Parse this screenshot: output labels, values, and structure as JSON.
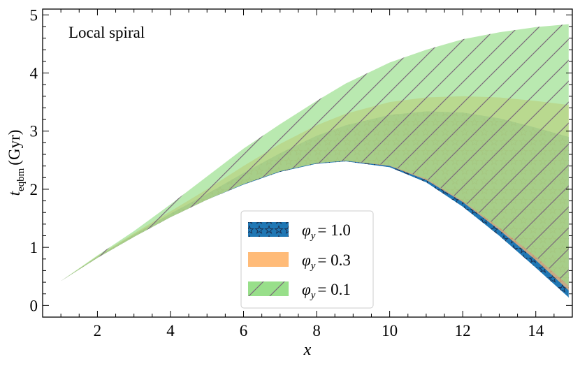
{
  "chart_data": {
    "type": "area",
    "annotation": "Local spiral",
    "xlabel": "x",
    "ylabel_main": "t",
    "ylabel_sub": "eqbm",
    "ylabel_unit": "(Gyr)",
    "xlim": [
      0.5,
      15
    ],
    "ylim": [
      -0.2,
      5.1
    ],
    "xticks": [
      2,
      4,
      6,
      8,
      10,
      12,
      14
    ],
    "yticks": [
      0,
      1,
      2,
      3,
      4,
      5
    ],
    "legend_position": "lower-center",
    "colors": {
      "phi_1_0": "#1f77b4",
      "phi_0_3": "#ffbb78",
      "phi_0_1": "#98df8a",
      "hatch_star": "#1a2a4a",
      "hatch_diag": "#7a6a7a"
    },
    "x": [
      1.0,
      2.0,
      3.0,
      4.0,
      5.0,
      6.0,
      7.0,
      8.0,
      8.8,
      10.0,
      11.0,
      12.0,
      13.0,
      14.0,
      14.9
    ],
    "series": [
      {
        "name": "phi_y = 1.0",
        "legend_label": "= 1.0",
        "hatch": "stars",
        "lower": [
          0.42,
          0.82,
          1.18,
          1.52,
          1.82,
          2.08,
          2.3,
          2.44,
          2.48,
          2.38,
          2.12,
          1.7,
          1.2,
          0.65,
          0.14
        ],
        "upper": [
          0.42,
          0.84,
          1.22,
          1.58,
          1.92,
          2.28,
          2.62,
          2.92,
          3.1,
          3.28,
          3.34,
          3.32,
          3.22,
          3.06,
          2.9
        ]
      },
      {
        "name": "phi_y = 0.3",
        "legend_label": "= 0.3",
        "hatch": "none",
        "lower": [
          0.42,
          0.82,
          1.18,
          1.52,
          1.82,
          2.09,
          2.31,
          2.45,
          2.49,
          2.4,
          2.16,
          1.78,
          1.3,
          0.78,
          0.26
        ],
        "upper": [
          0.42,
          0.85,
          1.24,
          1.62,
          2.0,
          2.4,
          2.78,
          3.1,
          3.3,
          3.5,
          3.58,
          3.6,
          3.58,
          3.52,
          3.45
        ]
      },
      {
        "name": "phi_y = 0.1",
        "legend_label": "= 0.1",
        "hatch": "diagonal",
        "lower": [
          0.42,
          0.82,
          1.18,
          1.52,
          1.82,
          2.09,
          2.31,
          2.45,
          2.49,
          2.41,
          2.18,
          1.8,
          1.34,
          0.84,
          0.34
        ],
        "upper": [
          0.42,
          0.86,
          1.28,
          1.74,
          2.22,
          2.7,
          3.12,
          3.52,
          3.82,
          4.18,
          4.4,
          4.58,
          4.7,
          4.79,
          4.84
        ]
      }
    ],
    "legend_symbol": "φ",
    "legend_subscript": "y"
  }
}
